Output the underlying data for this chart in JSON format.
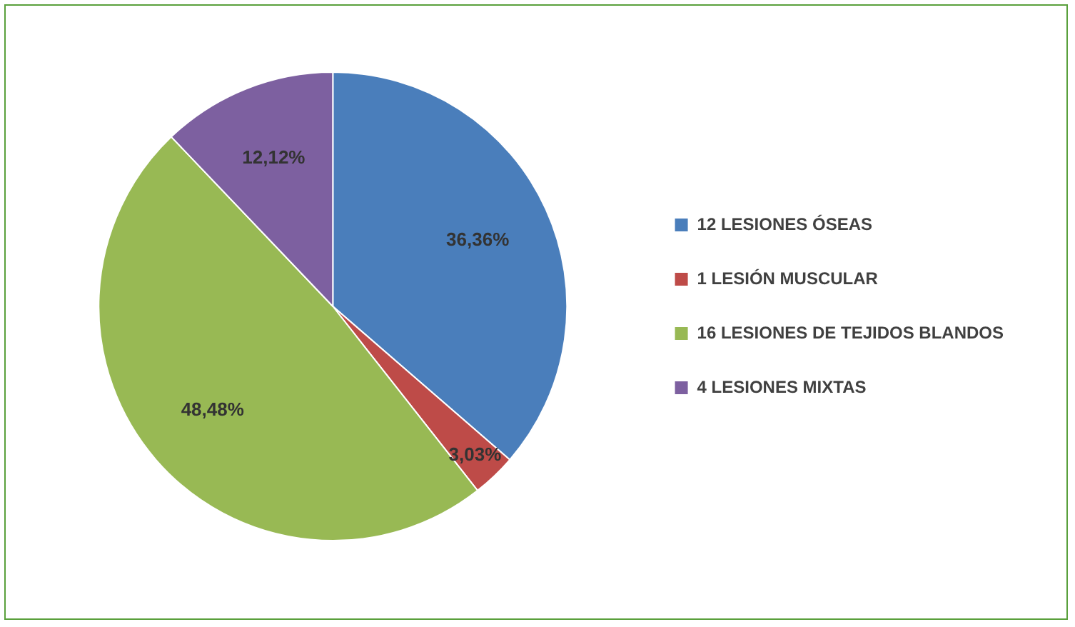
{
  "chart_data": {
    "type": "pie",
    "categories": [
      "12 LESIONES ÓSEAS",
      "1 LESIÓN MUSCULAR",
      "16 LESIONES DE TEJIDOS BLANDOS",
      "4 LESIONES MIXTAS"
    ],
    "values": [
      36.36,
      3.03,
      48.48,
      12.12
    ],
    "colors": [
      "#4a7ebb",
      "#be4b48",
      "#98b954",
      "#7d60a0"
    ],
    "value_labels": [
      "36,36%",
      "3,03%",
      "48,48%",
      "12,12%"
    ],
    "legend": "right"
  }
}
